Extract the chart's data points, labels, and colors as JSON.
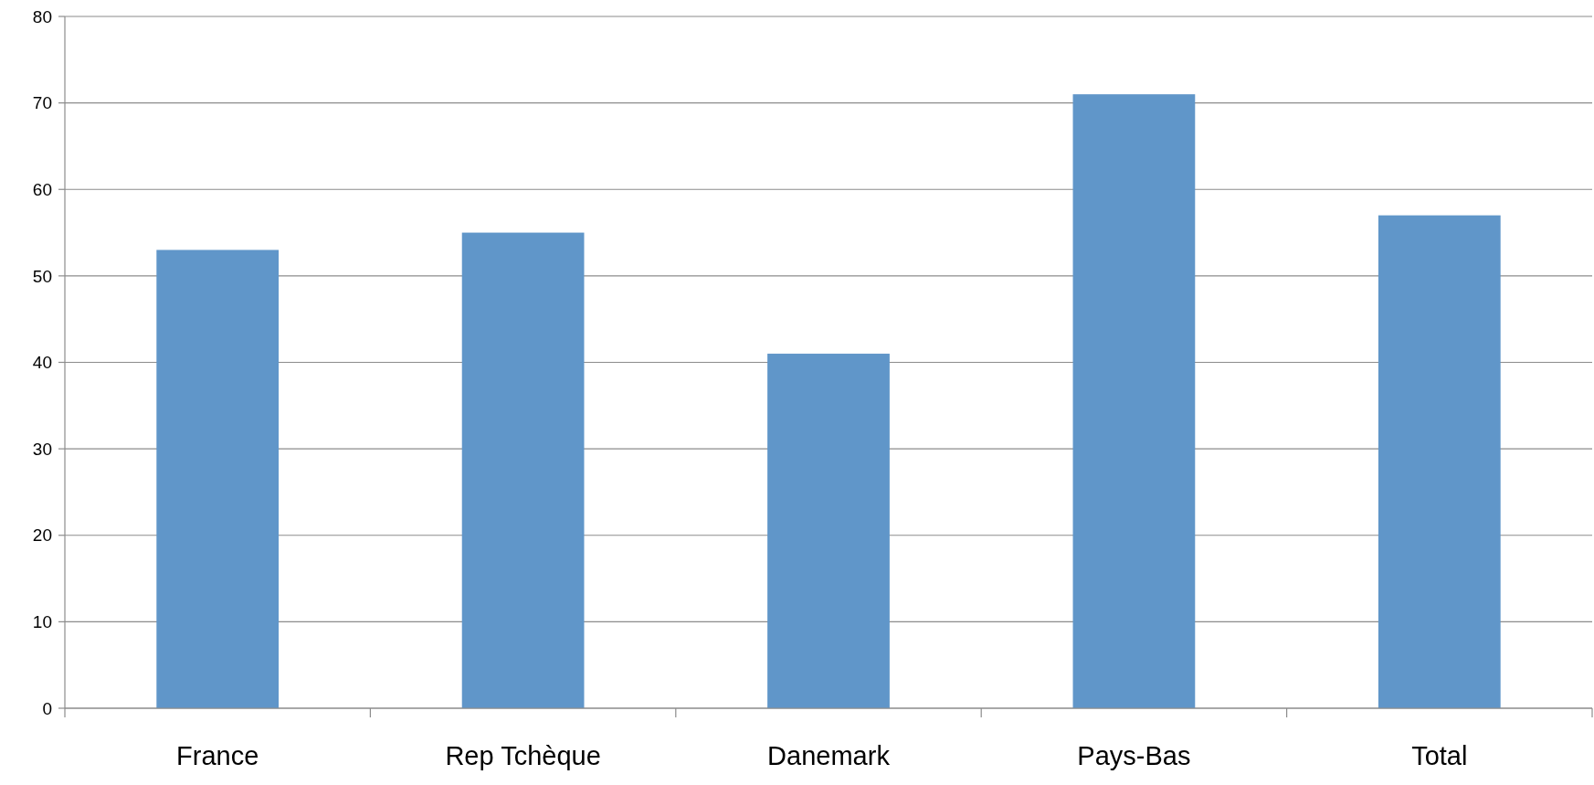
{
  "chart_data": {
    "type": "bar",
    "categories": [
      "France",
      "Rep Tchèque",
      "Danemark",
      "Pays-Bas",
      "Total"
    ],
    "values": [
      53,
      55,
      41,
      71,
      57
    ],
    "color": "#6096c9",
    "ylim": [
      0,
      80
    ],
    "yticks": [
      0,
      10,
      20,
      30,
      40,
      50,
      60,
      70,
      80
    ],
    "grid": "y"
  }
}
